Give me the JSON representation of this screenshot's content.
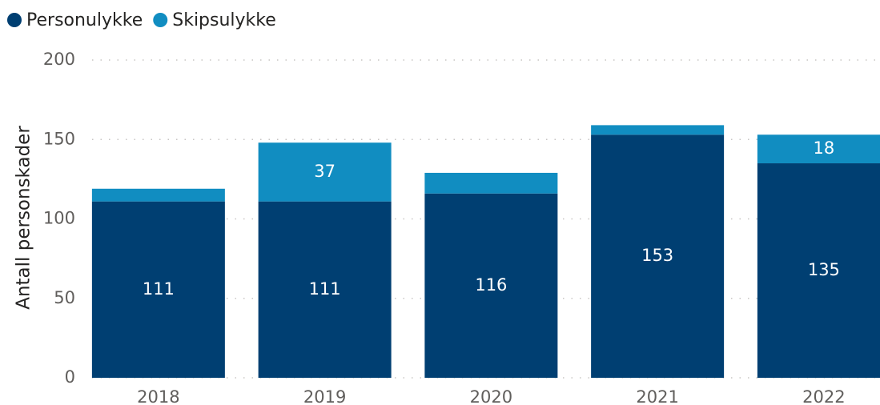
{
  "chart_data": {
    "type": "bar",
    "stacked": true,
    "y_label": "Antall personskader",
    "categories": [
      "2018",
      "2019",
      "2020",
      "2021",
      "2022"
    ],
    "series": [
      {
        "name": "Personulykke",
        "color": "#003f72",
        "values": [
          111,
          111,
          116,
          153,
          135
        ]
      },
      {
        "name": "Skipsulykke",
        "color": "#118dc1",
        "values": [
          8,
          37,
          13,
          6,
          18
        ]
      }
    ],
    "ylim": [
      0,
      200
    ],
    "yticks": [
      0,
      50,
      100,
      150,
      200
    ],
    "grid": true,
    "legend": "top-left"
  }
}
